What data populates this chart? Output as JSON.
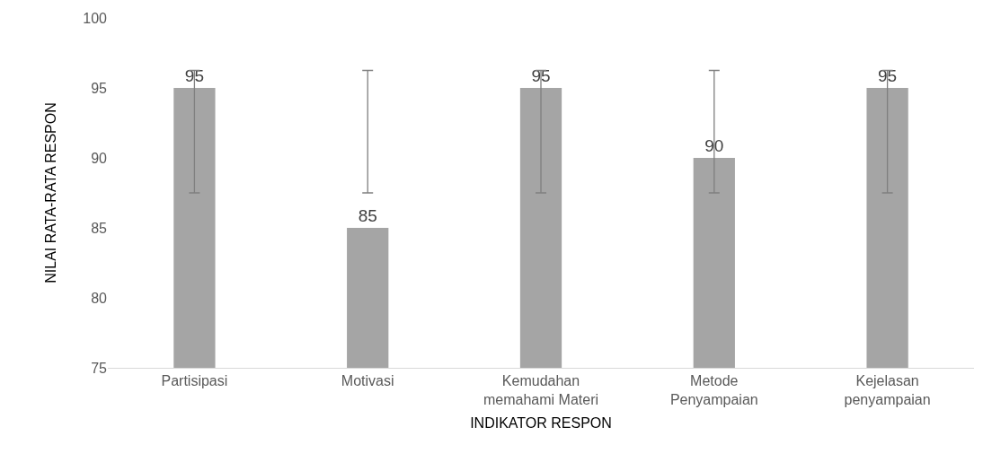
{
  "chart_data": {
    "type": "bar",
    "xlabel": "INDIKATOR RESPON",
    "ylabel": "NILAI RATA-RATA RESPON",
    "categories": [
      "Partisipasi",
      "Motivasi",
      "Kemudahan memahami Materi",
      "Metode Penyampaian",
      "Kejelasan penyampaian"
    ],
    "values": [
      95,
      85,
      95,
      90,
      95
    ],
    "color": "#a5a5a5",
    "errors": [
      [
        87.5,
        96.25
      ],
      [
        87.5,
        96.25
      ],
      [
        87.5,
        96.25
      ],
      [
        87.5,
        96.25
      ],
      [
        87.5,
        96.25
      ]
    ],
    "ylim": [
      75,
      100
    ],
    "yticks": [
      75,
      80,
      85,
      90,
      95,
      100
    ],
    "grid": false,
    "data_labels": true,
    "legend": false
  }
}
